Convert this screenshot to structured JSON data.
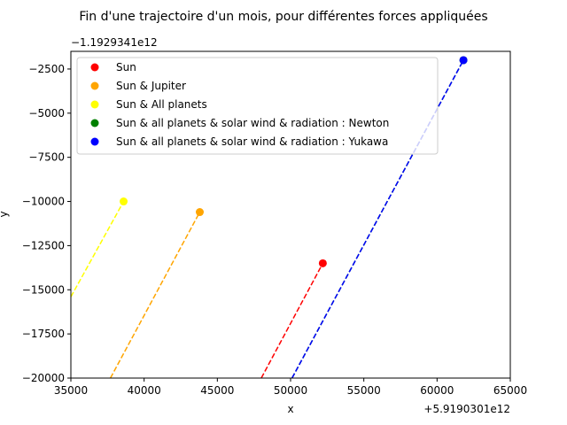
{
  "chart_data": {
    "type": "line",
    "title": "Fin d'une trajectoire d'un mois, pour différentes forces appliquées",
    "xlabel": "x",
    "ylabel": "y",
    "x_offset_label": "+5.9190301e12",
    "y_offset_label": "−1.1929341e12",
    "xlim": [
      35000,
      65000
    ],
    "ylim": [
      -20000,
      -1500
    ],
    "x_ticks": [
      35000,
      40000,
      45000,
      50000,
      55000,
      60000,
      65000
    ],
    "x_tick_labels": [
      "35000",
      "40000",
      "45000",
      "50000",
      "55000",
      "60000",
      "65000"
    ],
    "y_ticks": [
      -2500,
      -5000,
      -7500,
      -10000,
      -12500,
      -15000,
      -17500,
      -20000
    ],
    "y_tick_labels": [
      "−2500",
      "−5000",
      "−7500",
      "−10000",
      "−12500",
      "−15000",
      "−17500",
      "−20000"
    ],
    "grid": false,
    "legend_position": "top-left",
    "series": [
      {
        "name": "Sun",
        "color": "#ff0000",
        "line_style": "dashed",
        "x": [
          48000,
          52200
        ],
        "y": [
          -20000,
          -13500
        ],
        "end_marker": [
          52200,
          -13500
        ]
      },
      {
        "name": "Sun & Jupiter",
        "color": "#ffa500",
        "line_style": "dashed",
        "x": [
          37700,
          43800
        ],
        "y": [
          -20000,
          -10600
        ],
        "end_marker": [
          43800,
          -10600
        ]
      },
      {
        "name": "Sun & All planets",
        "color": "#ffff00",
        "line_style": "dashed",
        "x": [
          35000,
          38600
        ],
        "y": [
          -15400,
          -10000
        ],
        "end_marker": [
          38600,
          -10000
        ]
      },
      {
        "name": "Sun & all planets & solar wind & radiation : Newton",
        "color": "#008000",
        "line_style": "dashed",
        "x": [
          50100,
          61800
        ],
        "y": [
          -20000,
          -2000
        ],
        "end_marker": [
          61800,
          -2000
        ]
      },
      {
        "name": "Sun & all planets & solar wind & radiation : Yukawa",
        "color": "#0000ff",
        "line_style": "dashed",
        "x": [
          50100,
          61800
        ],
        "y": [
          -20000,
          -2000
        ],
        "end_marker": [
          61800,
          -2000
        ]
      }
    ]
  }
}
